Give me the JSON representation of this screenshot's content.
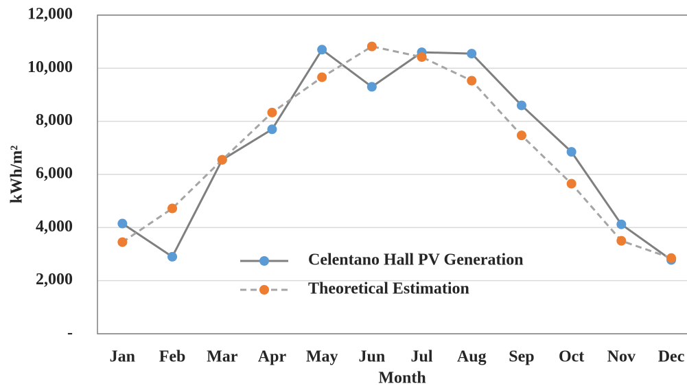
{
  "chart_data": {
    "type": "line",
    "x_label": "Month",
    "y_label": "kWh/m²",
    "categories": [
      "Jan",
      "Feb",
      "Mar",
      "Apr",
      "May",
      "Jun",
      "Jul",
      "Aug",
      "Sep",
      "Oct",
      "Nov",
      "Dec"
    ],
    "series": [
      {
        "name": "Celentano Hall PV Generation",
        "color": "#5b9bd5",
        "line_color": "#7f7f7f",
        "dashed": false,
        "values": [
          4150,
          2900,
          6550,
          7700,
          10700,
          9300,
          10600,
          10550,
          8600,
          6850,
          4120,
          2780
        ]
      },
      {
        "name": "Theoretical Estimation",
        "color": "#ed7d31",
        "line_color": "#a5a5a5",
        "dashed": true,
        "values": [
          3450,
          4720,
          6550,
          8330,
          9660,
          10820,
          10420,
          9530,
          7470,
          5650,
          3500,
          2850
        ]
      }
    ],
    "ylim": [
      0,
      12000
    ],
    "yticks": [
      {
        "value": 0,
        "label": "-"
      },
      {
        "value": 2000,
        "label": "2,000"
      },
      {
        "value": 4000,
        "label": "4,000"
      },
      {
        "value": 6000,
        "label": "6,000"
      },
      {
        "value": 8000,
        "label": "8,000"
      },
      {
        "value": 10000,
        "label": "10,000"
      },
      {
        "value": 12000,
        "label": "12,000"
      }
    ],
    "grid": true
  }
}
